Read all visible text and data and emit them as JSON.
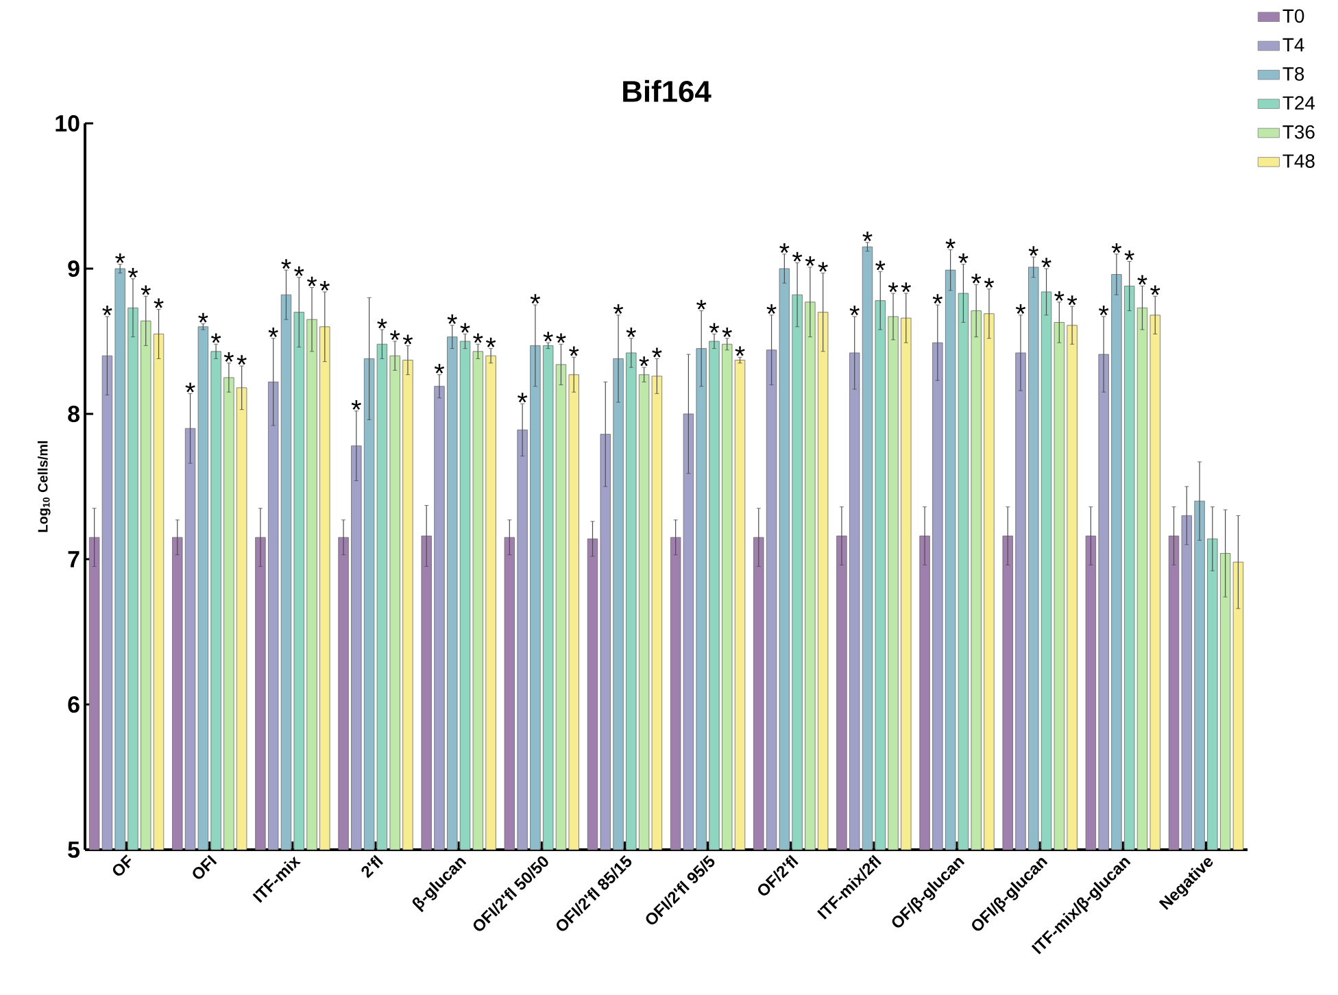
{
  "chart_data": {
    "type": "bar",
    "title": "Bif164",
    "ylabel": "Log$_{10}$ Cells/ml",
    "categories": [
      "OF",
      "OFI",
      "ITF-mix",
      "2'fl",
      "β-glucan",
      "OFI/2'fl 50/50",
      "OFI/2'fl 85/15",
      "OFI/2'fl 95/5",
      "OF/2'fl",
      "ITF-mix/2fl",
      "OF/β-glucan",
      "OFI/β-glucan",
      "ITF-mix/β-glucan",
      "Negative"
    ],
    "ylim": [
      5,
      10
    ],
    "yticks": [
      5,
      6,
      7,
      8,
      9,
      10
    ],
    "grid": false,
    "legend": "top right",
    "series": [
      {
        "name": "T0",
        "color": "#9f7fad",
        "values": [
          7.15,
          7.15,
          7.15,
          7.15,
          7.16,
          7.15,
          7.14,
          7.15,
          7.15,
          7.16,
          7.16,
          7.16,
          7.16,
          7.16
        ],
        "errors": [
          0.2,
          0.12,
          0.2,
          0.12,
          0.21,
          0.12,
          0.12,
          0.12,
          0.2,
          0.2,
          0.2,
          0.2,
          0.2,
          0.2
        ],
        "value_labels": [
          null,
          null,
          null,
          null,
          null,
          null,
          null,
          null,
          null,
          null,
          null,
          null,
          null,
          null
        ]
      },
      {
        "name": "T4",
        "color": "#a0a0c8",
        "values": [
          8.4,
          7.9,
          8.22,
          7.78,
          8.19,
          7.89,
          7.86,
          8.0,
          8.44,
          8.42,
          8.49,
          8.42,
          8.41,
          7.3
        ],
        "errors": [
          0.27,
          0.24,
          0.3,
          0.24,
          0.08,
          0.18,
          0.36,
          0.41,
          0.24,
          0.25,
          0.26,
          0.26,
          0.26,
          0.2
        ],
        "value_labels": [
          "*",
          "*",
          "*",
          "*",
          "*",
          "*",
          null,
          null,
          "*",
          "*",
          "*",
          "*",
          "*",
          null
        ]
      },
      {
        "name": "T8",
        "color": "#8fbccb",
        "values": [
          9.0,
          8.6,
          8.82,
          8.38,
          8.53,
          8.47,
          8.38,
          8.45,
          9.0,
          9.15,
          8.99,
          9.01,
          8.96,
          7.4
        ],
        "errors": [
          0.03,
          0.02,
          0.17,
          0.42,
          0.08,
          0.28,
          0.3,
          0.26,
          0.1,
          0.03,
          0.14,
          0.07,
          0.14,
          0.27
        ],
        "value_labels": [
          "*",
          "*",
          "*",
          null,
          "*",
          "*",
          "*",
          "*",
          "*",
          "*",
          "*",
          "*",
          "*",
          null
        ]
      },
      {
        "name": "T24",
        "color": "#8ed6c0",
        "values": [
          8.73,
          8.43,
          8.7,
          8.48,
          8.5,
          8.47,
          8.42,
          8.5,
          8.82,
          8.78,
          8.83,
          8.84,
          8.88,
          7.14
        ],
        "errors": [
          0.2,
          0.05,
          0.24,
          0.1,
          0.05,
          0.02,
          0.1,
          0.05,
          0.22,
          0.2,
          0.2,
          0.16,
          0.17,
          0.22
        ],
        "value_labels": [
          "*",
          "*",
          "*",
          "*",
          "*",
          "*",
          "*",
          "*",
          "*",
          "*",
          "*",
          "*",
          "*",
          null
        ]
      },
      {
        "name": "T36",
        "color": "#bde8a8",
        "values": [
          8.64,
          8.25,
          8.65,
          8.4,
          8.43,
          8.34,
          8.27,
          8.48,
          8.77,
          8.67,
          8.71,
          8.63,
          8.73,
          7.04
        ],
        "errors": [
          0.17,
          0.1,
          0.22,
          0.1,
          0.05,
          0.14,
          0.05,
          0.04,
          0.24,
          0.16,
          0.18,
          0.14,
          0.15,
          0.3
        ],
        "value_labels": [
          "*",
          "*",
          "*",
          "*",
          "*",
          "*",
          "*",
          "*",
          "*",
          "*",
          "*",
          "*",
          "*",
          null
        ]
      },
      {
        "name": "T48",
        "color": "#f7ec8f",
        "values": [
          8.55,
          8.18,
          8.6,
          8.37,
          8.4,
          8.27,
          8.26,
          8.37,
          8.7,
          8.66,
          8.69,
          8.61,
          8.68,
          6.98
        ],
        "errors": [
          0.17,
          0.15,
          0.24,
          0.1,
          0.05,
          0.12,
          0.12,
          0.02,
          0.27,
          0.17,
          0.17,
          0.13,
          0.13,
          0.32
        ],
        "value_labels": [
          "*",
          "*",
          "*",
          "*",
          "*",
          "*",
          "*",
          "*",
          "*",
          "*",
          "*",
          "*",
          "*",
          null
        ]
      }
    ]
  }
}
